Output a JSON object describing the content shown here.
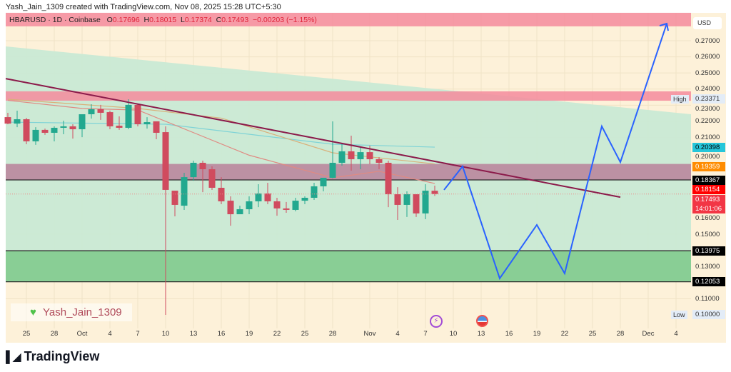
{
  "credit": "Yash_Jain_1309 created with TradingView.com, Nov 08, 2025 15:28 UTC+5:30",
  "legend": {
    "symbol": "HBARUSD · 1D · Coinbase",
    "o_label": "O",
    "o": "0.17696",
    "h_label": "H",
    "h": "0.18015",
    "l_label": "L",
    "l": "0.17374",
    "c_label": "C",
    "c": "0.17493",
    "change": "−0.00203 (−1.15%)"
  },
  "currency": "USD",
  "watermark": "Yash_Jain_1309",
  "footer_brand": "TradingView",
  "icons": {
    "events": "lightning-event-icon",
    "country": "us-flag-icon"
  },
  "colors": {
    "up": "#089981",
    "down": "#f23645",
    "background": "#fdf1d9",
    "trendline": "#8b1a4a",
    "projection": "#2962ff"
  },
  "price_labels": [
    {
      "text": "0.17493",
      "sub": "14:01:06",
      "price": 0.17493,
      "bg": "#f23645",
      "fg": "#ffffff"
    },
    {
      "text": "0.20398",
      "price": 0.20398,
      "bg": "#26c6da",
      "fg": "#000000"
    },
    {
      "text": "0.19359",
      "price": 0.19359,
      "bg": "#ff8c00",
      "fg": "#ffffff"
    },
    {
      "text": "0.18367",
      "price": 0.18367,
      "bg": "#000000",
      "fg": "#ffffff"
    },
    {
      "text": "0.18154",
      "price": 0.18154,
      "bg": "#ff0000",
      "fg": "#ffffff"
    },
    {
      "text": "0.13975",
      "price": 0.13975,
      "bg": "#000000",
      "fg": "#ffffff"
    },
    {
      "text": "0.12053",
      "price": 0.12053,
      "bg": "#000000",
      "fg": "#ffffff"
    }
  ],
  "high_marker": {
    "label": "High",
    "value": "0.23371",
    "price": 0.23371
  },
  "low_marker": {
    "label": "Low",
    "value": "0.10000",
    "price": 0.1
  },
  "chart_data": {
    "type": "candlestick",
    "title": "HBARUSD · 1D · Coinbase",
    "ylim": [
      0.09,
      0.285
    ],
    "y_ticks": [
      "0.27000",
      "0.26000",
      "0.25000",
      "0.24000",
      "0.23000",
      "0.22000",
      "0.21000",
      "0.20000",
      "0.16000",
      "0.15000",
      "0.13000",
      "0.11000"
    ],
    "y_tick_values": [
      0.27,
      0.26,
      0.25,
      0.24,
      0.23,
      0.22,
      0.21,
      0.2,
      0.16,
      0.15,
      0.13,
      0.11
    ],
    "x_ticks": [
      {
        "label": "25",
        "date": "2025-09-25"
      },
      {
        "label": "28",
        "date": "2025-09-28"
      },
      {
        "label": "Oct",
        "date": "2025-10-01"
      },
      {
        "label": "4",
        "date": "2025-10-04"
      },
      {
        "label": "7",
        "date": "2025-10-07"
      },
      {
        "label": "10",
        "date": "2025-10-10"
      },
      {
        "label": "13",
        "date": "2025-10-13"
      },
      {
        "label": "16",
        "date": "2025-10-16"
      },
      {
        "label": "19",
        "date": "2025-10-19"
      },
      {
        "label": "22",
        "date": "2025-10-22"
      },
      {
        "label": "25",
        "date": "2025-10-25"
      },
      {
        "label": "28",
        "date": "2025-10-28"
      },
      {
        "label": "Nov",
        "date": "2025-11-01"
      },
      {
        "label": "4",
        "date": "2025-11-04"
      },
      {
        "label": "7",
        "date": "2025-11-07"
      },
      {
        "label": "10",
        "date": "2025-11-10"
      },
      {
        "label": "13",
        "date": "2025-11-13"
      },
      {
        "label": "16",
        "date": "2025-11-16"
      },
      {
        "label": "19",
        "date": "2025-11-19"
      },
      {
        "label": "22",
        "date": "2025-11-22"
      },
      {
        "label": "25",
        "date": "2025-11-25"
      },
      {
        "label": "28",
        "date": "2025-11-28"
      },
      {
        "label": "Dec",
        "date": "2025-12-01"
      },
      {
        "label": "4",
        "date": "2025-12-04"
      }
    ],
    "first_date": "2025-09-23",
    "ohlc": [
      [
        0.2226,
        0.2253,
        0.2182,
        0.2186
      ],
      [
        0.2186,
        0.2266,
        0.2164,
        0.2213
      ],
      [
        0.2213,
        0.2222,
        0.2058,
        0.2076
      ],
      [
        0.2076,
        0.2164,
        0.2054,
        0.2147
      ],
      [
        0.2147,
        0.2155,
        0.2116,
        0.2129
      ],
      [
        0.2129,
        0.2169,
        0.2076,
        0.216
      ],
      [
        0.216,
        0.2204,
        0.212,
        0.2169
      ],
      [
        0.2169,
        0.2182,
        0.2093,
        0.2151
      ],
      [
        0.2151,
        0.2244,
        0.2102,
        0.2244
      ],
      [
        0.2244,
        0.2306,
        0.2217,
        0.2275
      ],
      [
        0.2275,
        0.2302,
        0.2209,
        0.2253
      ],
      [
        0.2257,
        0.2266,
        0.2151,
        0.2169
      ],
      [
        0.2173,
        0.2231,
        0.2147,
        0.216
      ],
      [
        0.216,
        0.2337,
        0.2151,
        0.2302
      ],
      [
        0.2302,
        0.2306,
        0.2169,
        0.2182
      ],
      [
        0.2182,
        0.2226,
        0.2155,
        0.2195
      ],
      [
        0.22,
        0.22,
        0.2089,
        0.2129
      ],
      [
        0.2133,
        0.2169,
        0.1,
        0.1775
      ],
      [
        0.177,
        0.177,
        0.1611,
        0.1682
      ],
      [
        0.1677,
        0.1881,
        0.1651,
        0.1854
      ],
      [
        0.1854,
        0.1956,
        0.1832,
        0.1943
      ],
      [
        0.1943,
        0.1956,
        0.1761,
        0.1903
      ],
      [
        0.1903,
        0.1921,
        0.1775,
        0.1788
      ],
      [
        0.1788,
        0.1854,
        0.1686,
        0.1704
      ],
      [
        0.1708,
        0.1735,
        0.1553,
        0.1624
      ],
      [
        0.1624,
        0.1677,
        0.1624,
        0.1655
      ],
      [
        0.1655,
        0.1735,
        0.1624,
        0.1704
      ],
      [
        0.1704,
        0.181,
        0.1668,
        0.1753
      ],
      [
        0.1753,
        0.1819,
        0.1686,
        0.1704
      ],
      [
        0.1704,
        0.1726,
        0.1615,
        0.166
      ],
      [
        0.166,
        0.17,
        0.1633,
        0.1651
      ],
      [
        0.1651,
        0.1726,
        0.1642,
        0.1708
      ],
      [
        0.1708,
        0.1735,
        0.1686,
        0.1726
      ],
      [
        0.1726,
        0.1819,
        0.1713,
        0.1797
      ],
      [
        0.1797,
        0.185,
        0.1766,
        0.185
      ],
      [
        0.185,
        0.22,
        0.1846,
        0.1943
      ],
      [
        0.1943,
        0.2067,
        0.1925,
        0.2014
      ],
      [
        0.2014,
        0.2111,
        0.1894,
        0.1965
      ],
      [
        0.1965,
        0.204,
        0.1903,
        0.2009
      ],
      [
        0.2009,
        0.2049,
        0.1934,
        0.1965
      ],
      [
        0.1965,
        0.1978,
        0.1903,
        0.1943
      ],
      [
        0.1943,
        0.1956,
        0.1668,
        0.1748
      ],
      [
        0.1748,
        0.1792,
        0.1589,
        0.1682
      ],
      [
        0.1682,
        0.1766,
        0.1607,
        0.1748
      ],
      [
        0.1748,
        0.1748,
        0.1607,
        0.1629
      ],
      [
        0.1629,
        0.181,
        0.1593,
        0.177
      ],
      [
        0.17696,
        0.18015,
        0.17374,
        0.17493
      ]
    ],
    "zones": [
      {
        "from": 0.2873,
        "to": 0.2789,
        "color": "#f58b9c"
      },
      {
        "from": 0.2386,
        "to": 0.2328,
        "color": "#f58b9c"
      },
      {
        "from": 0.19359,
        "to": 0.18367,
        "color": "#b9819a"
      },
      {
        "from": 0.13975,
        "to": 0.12053,
        "color": "#7cc98a"
      }
    ],
    "horizontal_lines": [
      0.18367,
      0.13975,
      0.12053
    ],
    "trendline": [
      {
        "date": "2025-09-23",
        "price": 0.2465
      },
      {
        "date": "2025-11-28",
        "price": 0.173
      }
    ],
    "projection": [
      {
        "date": "2025-11-09",
        "price": 0.1775
      },
      {
        "date": "2025-11-11",
        "price": 0.1921
      },
      {
        "date": "2025-11-15",
        "price": 0.1226
      },
      {
        "date": "2025-11-19",
        "price": 0.1558
      },
      {
        "date": "2025-11-22",
        "price": 0.1257
      },
      {
        "date": "2025-11-26",
        "price": 0.2169
      },
      {
        "date": "2025-11-28",
        "price": 0.1947
      },
      {
        "date": "2025-12-03",
        "price": 0.2806
      }
    ],
    "moving_averages": [
      {
        "color": "#7fd3d6",
        "points": [
          [
            "2025-09-23",
            0.2195
          ],
          [
            "2025-10-10",
            0.2182
          ],
          [
            "2025-10-28",
            0.2058
          ],
          [
            "2025-11-08",
            0.204
          ]
        ]
      },
      {
        "color": "#d9b07a",
        "points": [
          [
            "2025-09-23",
            0.2337
          ],
          [
            "2025-10-07",
            0.228
          ],
          [
            "2025-10-16",
            0.222
          ],
          [
            "2025-10-28",
            0.2005
          ],
          [
            "2025-11-08",
            0.1936
          ]
        ]
      },
      {
        "color": "#e08a82",
        "points": [
          [
            "2025-09-23",
            0.233
          ],
          [
            "2025-10-01",
            0.228
          ],
          [
            "2025-10-07",
            0.227
          ],
          [
            "2025-10-13",
            0.213
          ],
          [
            "2025-10-19",
            0.199
          ],
          [
            "2025-10-28",
            0.185
          ],
          [
            "2025-11-02",
            0.189
          ],
          [
            "2025-11-08",
            0.1815
          ]
        ]
      }
    ]
  }
}
